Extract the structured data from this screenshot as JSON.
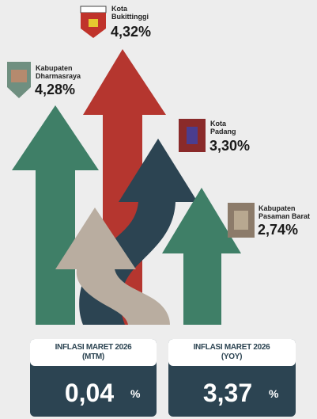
{
  "regions": [
    {
      "name_lines": [
        "Kota",
        "Bukittinggi"
      ],
      "value": "4,32%"
    },
    {
      "name_lines": [
        "Kabupaten",
        "Dharmasraya"
      ],
      "value": "4,28%"
    },
    {
      "name_lines": [
        "Kota",
        "Padang"
      ],
      "value": "3,30%"
    },
    {
      "name_lines": [
        "Kabupaten",
        "Pasaman Barat"
      ],
      "value": "2,74%"
    }
  ],
  "cards": [
    {
      "title_lines": [
        "INFLASI MARET 2026",
        "(MTM)"
      ],
      "value": "0,04",
      "unit": "%"
    },
    {
      "title_lines": [
        "INFLASI MARET 2026",
        "(YOY)"
      ],
      "value": "3,37",
      "unit": "%"
    }
  ]
}
